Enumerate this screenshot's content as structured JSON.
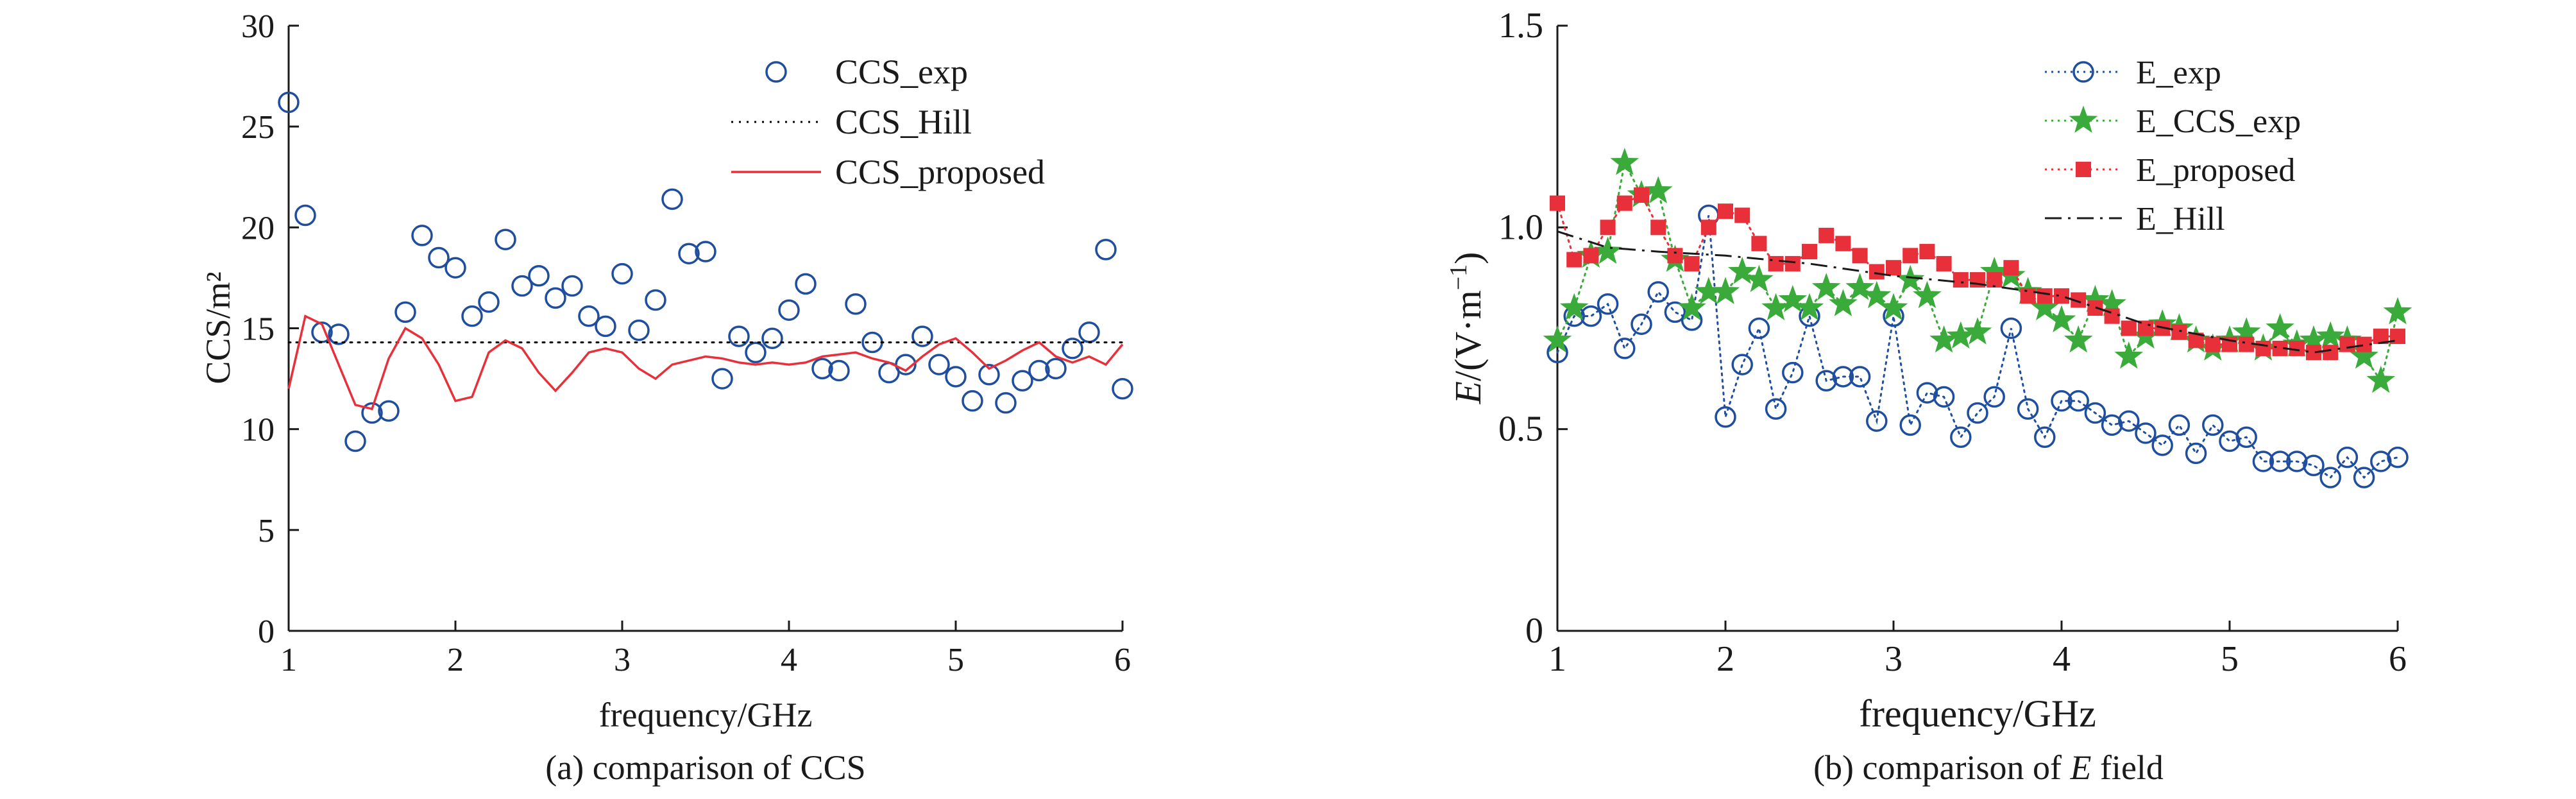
{
  "figure": {
    "caption_a": "(a) comparison of CCS",
    "caption_b_prefix": "(b) comparison of ",
    "caption_b_italic": "E",
    "caption_b_suffix": " field"
  },
  "chart_data": [
    {
      "type": "scatter",
      "panel": "a",
      "xlabel": "frequency/GHz",
      "ylabel": "CCS/m²",
      "xlim": [
        1,
        6
      ],
      "ylim": [
        0,
        30
      ],
      "xticks": [
        1,
        2,
        3,
        4,
        5,
        6
      ],
      "yticks": [
        0,
        5,
        10,
        15,
        20,
        25,
        30
      ],
      "legend_position": "top-right",
      "grid": false,
      "series": [
        {
          "name": "CCS_exp",
          "style": "open-circle",
          "color": "#1f4e9e",
          "x": [
            1.0,
            1.1,
            1.2,
            1.3,
            1.4,
            1.5,
            1.6,
            1.7,
            1.8,
            1.9,
            2.0,
            2.1,
            2.2,
            2.3,
            2.4,
            2.5,
            2.6,
            2.7,
            2.8,
            2.9,
            3.0,
            3.1,
            3.2,
            3.3,
            3.4,
            3.5,
            3.6,
            3.7,
            3.8,
            3.9,
            4.0,
            4.1,
            4.2,
            4.3,
            4.4,
            4.5,
            4.6,
            4.7,
            4.8,
            4.9,
            5.0,
            5.1,
            5.2,
            5.3,
            5.4,
            5.5,
            5.6,
            5.7,
            5.8,
            5.9,
            6.0
          ],
          "y": [
            26.2,
            20.6,
            14.8,
            14.7,
            9.4,
            10.8,
            10.9,
            15.8,
            19.6,
            18.5,
            18.0,
            15.6,
            16.3,
            19.4,
            17.1,
            17.6,
            16.5,
            17.1,
            15.6,
            15.1,
            17.7,
            14.9,
            16.4,
            21.4,
            18.7,
            18.8,
            12.5,
            14.6,
            13.8,
            14.5,
            15.9,
            17.2,
            13.0,
            12.9,
            16.2,
            14.3,
            12.8,
            13.2,
            14.6,
            13.2,
            12.6,
            11.4,
            12.7,
            11.3,
            12.4,
            12.9,
            13.0,
            14.0,
            14.8,
            18.9,
            12.0
          ]
        },
        {
          "name": "CCS_Hill",
          "style": "dotted-line",
          "color": "#000000",
          "x": [
            1,
            6
          ],
          "y": [
            14.3,
            14.3
          ]
        },
        {
          "name": "CCS_proposed",
          "style": "line",
          "color": "#e8303a",
          "x": [
            1.0,
            1.1,
            1.2,
            1.3,
            1.4,
            1.5,
            1.6,
            1.7,
            1.8,
            1.9,
            2.0,
            2.1,
            2.2,
            2.3,
            2.4,
            2.5,
            2.6,
            2.7,
            2.8,
            2.9,
            3.0,
            3.1,
            3.2,
            3.3,
            3.4,
            3.5,
            3.6,
            3.7,
            3.8,
            3.9,
            4.0,
            4.1,
            4.2,
            4.3,
            4.4,
            4.5,
            4.6,
            4.7,
            4.8,
            4.9,
            5.0,
            5.1,
            5.2,
            5.3,
            5.4,
            5.5,
            5.6,
            5.7,
            5.8,
            5.9,
            6.0
          ],
          "y": [
            12.0,
            15.6,
            15.2,
            13.2,
            11.2,
            11.0,
            13.5,
            15.0,
            14.5,
            13.2,
            11.4,
            11.6,
            13.8,
            14.4,
            14.0,
            12.8,
            11.9,
            12.8,
            13.8,
            14.0,
            13.8,
            13.0,
            12.5,
            13.2,
            13.4,
            13.6,
            13.5,
            13.3,
            13.2,
            13.3,
            13.2,
            13.3,
            13.6,
            13.7,
            13.8,
            13.5,
            13.3,
            12.9,
            13.6,
            14.2,
            14.5,
            13.8,
            13.0,
            13.4,
            13.9,
            14.3,
            13.6,
            13.3,
            13.6,
            13.2,
            14.2
          ]
        }
      ]
    },
    {
      "type": "line",
      "panel": "b",
      "xlabel": "frequency/GHz",
      "ylabel_italic": "E",
      "ylabel_rest": "/(V·m",
      "ylabel_sup": "−1",
      "ylabel_close": ")",
      "xlim": [
        1,
        6
      ],
      "ylim": [
        0,
        1.5
      ],
      "xticks": [
        1,
        2,
        3,
        4,
        5,
        6
      ],
      "yticks": [
        0,
        0.5,
        1.0,
        1.5
      ],
      "ytick_labels": [
        "0",
        "0.5",
        "1.0",
        "1.5"
      ],
      "legend_position": "top-right",
      "grid": false,
      "series": [
        {
          "name": "E_exp",
          "style": "dotted-open-circle",
          "color": "#1f4e9e",
          "x": [
            1.0,
            1.1,
            1.2,
            1.3,
            1.4,
            1.5,
            1.6,
            1.7,
            1.8,
            1.9,
            2.0,
            2.1,
            2.2,
            2.3,
            2.4,
            2.5,
            2.6,
            2.7,
            2.8,
            2.9,
            3.0,
            3.1,
            3.2,
            3.3,
            3.4,
            3.5,
            3.6,
            3.7,
            3.8,
            3.9,
            4.0,
            4.1,
            4.2,
            4.3,
            4.4,
            4.5,
            4.6,
            4.7,
            4.8,
            4.9,
            5.0,
            5.1,
            5.2,
            5.3,
            5.4,
            5.5,
            5.6,
            5.7,
            5.8,
            5.9,
            6.0
          ],
          "y": [
            0.69,
            0.78,
            0.78,
            0.81,
            0.7,
            0.76,
            0.84,
            0.79,
            0.77,
            1.03,
            0.53,
            0.66,
            0.75,
            0.55,
            0.64,
            0.78,
            0.62,
            0.63,
            0.63,
            0.52,
            0.78,
            0.51,
            0.59,
            0.58,
            0.48,
            0.54,
            0.58,
            0.75,
            0.55,
            0.48,
            0.57,
            0.57,
            0.54,
            0.51,
            0.52,
            0.49,
            0.46,
            0.51,
            0.44,
            0.51,
            0.47,
            0.48,
            0.42,
            0.42,
            0.42,
            0.41,
            0.38,
            0.43,
            0.38,
            0.42,
            0.43
          ]
        },
        {
          "name": "E_CCS_exp",
          "style": "dotted-star",
          "color": "#3aaa3a",
          "x": [
            1.0,
            1.1,
            1.2,
            1.3,
            1.4,
            1.5,
            1.6,
            1.7,
            1.8,
            1.9,
            2.0,
            2.1,
            2.2,
            2.3,
            2.4,
            2.5,
            2.6,
            2.7,
            2.8,
            2.9,
            3.0,
            3.1,
            3.2,
            3.3,
            3.4,
            3.5,
            3.6,
            3.7,
            3.8,
            3.9,
            4.0,
            4.1,
            4.2,
            4.3,
            4.4,
            4.5,
            4.6,
            4.7,
            4.8,
            4.9,
            5.0,
            5.1,
            5.2,
            5.3,
            5.4,
            5.5,
            5.6,
            5.7,
            5.8,
            5.9,
            6.0
          ],
          "y": [
            0.72,
            0.8,
            0.93,
            0.94,
            1.16,
            1.08,
            1.09,
            0.92,
            0.8,
            0.84,
            0.84,
            0.89,
            0.87,
            0.8,
            0.82,
            0.8,
            0.85,
            0.81,
            0.85,
            0.83,
            0.8,
            0.87,
            0.83,
            0.72,
            0.73,
            0.74,
            0.89,
            0.88,
            0.84,
            0.8,
            0.77,
            0.72,
            0.82,
            0.81,
            0.68,
            0.73,
            0.76,
            0.75,
            0.72,
            0.7,
            0.72,
            0.74,
            0.7,
            0.75,
            0.71,
            0.72,
            0.73,
            0.72,
            0.68,
            0.62,
            0.79
          ]
        },
        {
          "name": "E_proposed",
          "style": "dotted-square",
          "color": "#e8303a",
          "x": [
            1.0,
            1.1,
            1.2,
            1.3,
            1.4,
            1.5,
            1.6,
            1.7,
            1.8,
            1.9,
            2.0,
            2.1,
            2.2,
            2.3,
            2.4,
            2.5,
            2.6,
            2.7,
            2.8,
            2.9,
            3.0,
            3.1,
            3.2,
            3.3,
            3.4,
            3.5,
            3.6,
            3.7,
            3.8,
            3.9,
            4.0,
            4.1,
            4.2,
            4.3,
            4.4,
            4.5,
            4.6,
            4.7,
            4.8,
            4.9,
            5.0,
            5.1,
            5.2,
            5.3,
            5.4,
            5.5,
            5.6,
            5.7,
            5.8,
            5.9,
            6.0
          ],
          "y": [
            1.06,
            0.92,
            0.93,
            1.0,
            1.06,
            1.08,
            1.0,
            0.93,
            0.91,
            1.0,
            1.04,
            1.03,
            0.96,
            0.91,
            0.91,
            0.94,
            0.98,
            0.96,
            0.93,
            0.89,
            0.9,
            0.93,
            0.94,
            0.91,
            0.87,
            0.87,
            0.87,
            0.9,
            0.83,
            0.83,
            0.83,
            0.82,
            0.8,
            0.78,
            0.75,
            0.75,
            0.75,
            0.74,
            0.72,
            0.71,
            0.71,
            0.71,
            0.7,
            0.7,
            0.7,
            0.69,
            0.69,
            0.71,
            0.71,
            0.73,
            0.73
          ]
        },
        {
          "name": "E_Hill",
          "style": "dash-dot-line",
          "color": "#1a1a1a",
          "x": [
            1.0,
            1.3,
            1.6,
            2.0,
            2.5,
            3.0,
            3.5,
            4.0,
            4.5,
            5.0,
            5.5,
            6.0
          ],
          "y": [
            0.99,
            0.95,
            0.94,
            0.93,
            0.91,
            0.88,
            0.86,
            0.83,
            0.76,
            0.72,
            0.69,
            0.72
          ]
        }
      ]
    }
  ]
}
